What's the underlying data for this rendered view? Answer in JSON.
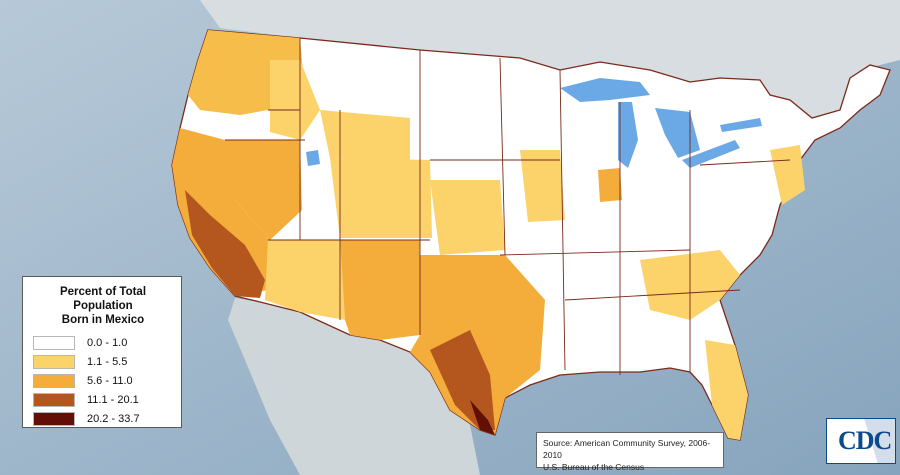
{
  "legend": {
    "title_line1": "Percent of Total Population",
    "title_line2": "Born in Mexico",
    "classes": [
      {
        "range": "0.0 - 1.0",
        "color": "#ffffff"
      },
      {
        "range": "1.1 - 5.5",
        "color": "#fcd36a"
      },
      {
        "range": "5.6 - 11.0",
        "color": "#f4ad3a"
      },
      {
        "range": "11.1 - 20.1",
        "color": "#b4571e"
      },
      {
        "range": "20.2 - 33.7",
        "color": "#621006"
      }
    ]
  },
  "source": {
    "line1": "Source: American Community Survey, 2006-2010",
    "line2": "U.S. Bureau of the Census"
  },
  "logo": {
    "text": "CDC"
  },
  "colors": {
    "ocean": "#9fb9cf",
    "land_outside": "#cfd8df",
    "state_border": "#7a2a1a",
    "lakes": "#6aa9e6"
  }
}
